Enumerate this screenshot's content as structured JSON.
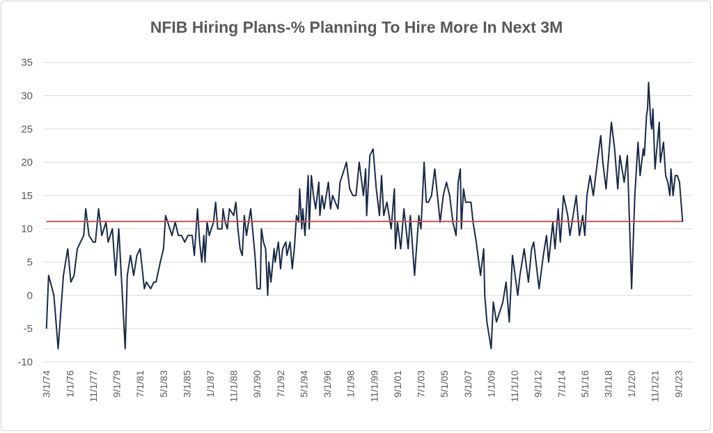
{
  "chart_data": {
    "type": "line",
    "title": "NFIB Hiring Plans-% Planning To Hire More In Next 3M",
    "xlabel": "",
    "ylabel": "",
    "ylim": [
      -10,
      35
    ],
    "yticks": [
      35,
      30,
      25,
      20,
      15,
      10,
      5,
      0,
      -5,
      -10
    ],
    "xtick_labels": [
      "3/1/74",
      "1/1/76",
      "11/1/77",
      "9/1/79",
      "7/1/81",
      "5/1/83",
      "3/1/85",
      "1/1/87",
      "11/1/88",
      "9/1/90",
      "7/1/92",
      "5/1/94",
      "3/1/96",
      "1/1/98",
      "11/1/99",
      "9/1/01",
      "7/1/03",
      "5/1/05",
      "3/1/07",
      "1/1/09",
      "11/1/10",
      "9/1/12",
      "7/1/14",
      "5/1/16",
      "3/1/18",
      "1/1/20",
      "11/1/21",
      "9/1/23"
    ],
    "grid": "horizontal",
    "legend": "none",
    "colors": {
      "series": "#17294a",
      "reference_line": "#c9544d",
      "grid": "#d9d9d9",
      "text": "#595959"
    },
    "reference_line": {
      "value": 11.1
    },
    "series": [
      {
        "points": [
          [
            "1974-03",
            -5
          ],
          [
            "1974-05",
            3
          ],
          [
            "1974-10",
            0
          ],
          [
            "1975-02",
            -8
          ],
          [
            "1975-07",
            3
          ],
          [
            "1975-11",
            7
          ],
          [
            "1976-02",
            2
          ],
          [
            "1976-05",
            3
          ],
          [
            "1976-08",
            7
          ],
          [
            "1977-02",
            9
          ],
          [
            "1977-04",
            13
          ],
          [
            "1977-07",
            9
          ],
          [
            "1977-11",
            8
          ],
          [
            "1978-01",
            8
          ],
          [
            "1978-04",
            13
          ],
          [
            "1978-07",
            9
          ],
          [
            "1978-11",
            11
          ],
          [
            "1979-01",
            8
          ],
          [
            "1979-05",
            10
          ],
          [
            "1979-08",
            3
          ],
          [
            "1979-11",
            10
          ],
          [
            "1980-05",
            -8
          ],
          [
            "1980-07",
            3
          ],
          [
            "1980-10",
            6
          ],
          [
            "1981-01",
            3
          ],
          [
            "1981-04",
            6
          ],
          [
            "1981-07",
            7
          ],
          [
            "1981-11",
            1
          ],
          [
            "1982-01",
            2
          ],
          [
            "1982-05",
            1
          ],
          [
            "1982-08",
            2
          ],
          [
            "1982-10",
            2
          ],
          [
            "1983-02",
            5
          ],
          [
            "1983-05",
            7
          ],
          [
            "1983-07",
            12
          ],
          [
            "1983-11",
            10
          ],
          [
            "1984-01",
            9
          ],
          [
            "1984-04",
            11
          ],
          [
            "1984-07",
            9
          ],
          [
            "1984-10",
            9
          ],
          [
            "1985-01",
            8
          ],
          [
            "1985-04",
            9
          ],
          [
            "1985-08",
            9
          ],
          [
            "1985-10",
            6
          ],
          [
            "1986-01",
            13
          ],
          [
            "1986-03",
            8
          ],
          [
            "1986-05",
            5
          ],
          [
            "1986-07",
            9
          ],
          [
            "1986-08",
            5
          ],
          [
            "1986-10",
            11
          ],
          [
            "1986-12",
            9
          ],
          [
            "1987-04",
            11
          ],
          [
            "1987-06",
            14
          ],
          [
            "1987-08",
            10
          ],
          [
            "1987-12",
            10
          ],
          [
            "1988-01",
            13
          ],
          [
            "1988-03",
            11
          ],
          [
            "1988-05",
            10
          ],
          [
            "1988-07",
            13
          ],
          [
            "1988-11",
            12
          ],
          [
            "1989-01",
            14
          ],
          [
            "1989-03",
            10
          ],
          [
            "1989-05",
            7
          ],
          [
            "1989-07",
            6
          ],
          [
            "1989-09",
            12
          ],
          [
            "1989-11",
            9
          ],
          [
            "1990-01",
            11
          ],
          [
            "1990-03",
            13
          ],
          [
            "1990-07",
            6
          ],
          [
            "1990-09",
            1
          ],
          [
            "1990-12",
            1
          ],
          [
            "1991-01",
            10
          ],
          [
            "1991-03",
            8
          ],
          [
            "1991-05",
            7
          ],
          [
            "1991-07",
            0
          ],
          [
            "1991-08",
            5
          ],
          [
            "1991-10",
            2
          ],
          [
            "1992-01",
            7
          ],
          [
            "1992-02",
            5
          ],
          [
            "1992-05",
            8
          ],
          [
            "1992-07",
            4
          ],
          [
            "1992-09",
            7
          ],
          [
            "1992-12",
            8
          ],
          [
            "1993-01",
            6
          ],
          [
            "1993-04",
            8
          ],
          [
            "1993-06",
            4
          ],
          [
            "1993-08",
            7
          ],
          [
            "1993-10",
            12
          ],
          [
            "1993-12",
            11
          ],
          [
            "1994-01",
            16
          ],
          [
            "1994-03",
            10
          ],
          [
            "1994-04",
            13
          ],
          [
            "1994-06",
            9
          ],
          [
            "1994-09",
            18
          ],
          [
            "1994-10",
            10
          ],
          [
            "1994-12",
            18
          ],
          [
            "1995-02",
            15
          ],
          [
            "1995-04",
            13
          ],
          [
            "1995-07",
            17
          ],
          [
            "1995-08",
            12
          ],
          [
            "1995-10",
            15
          ],
          [
            "1995-12",
            13
          ],
          [
            "1996-04",
            17
          ],
          [
            "1996-06",
            13
          ],
          [
            "1996-08",
            15
          ],
          [
            "1997-01",
            13
          ],
          [
            "1997-03",
            17
          ],
          [
            "1997-05",
            18
          ],
          [
            "1997-09",
            20
          ],
          [
            "1997-12",
            16
          ],
          [
            "1998-03",
            15
          ],
          [
            "1998-06",
            15
          ],
          [
            "1998-09",
            20
          ],
          [
            "1999-01",
            15
          ],
          [
            "1999-03",
            19
          ],
          [
            "1999-04",
            12
          ],
          [
            "1999-07",
            21
          ],
          [
            "1999-10",
            22
          ],
          [
            "2000-01",
            16
          ],
          [
            "2000-04",
            12
          ],
          [
            "2000-06",
            18
          ],
          [
            "2000-08",
            12
          ],
          [
            "2000-11",
            14
          ],
          [
            "2001-03",
            10
          ],
          [
            "2001-06",
            16
          ],
          [
            "2001-07",
            7
          ],
          [
            "2001-09",
            11
          ],
          [
            "2001-12",
            7
          ],
          [
            "2002-03",
            13
          ],
          [
            "2002-05",
            10
          ],
          [
            "2002-07",
            7
          ],
          [
            "2002-09",
            12
          ],
          [
            "2003-01",
            3
          ],
          [
            "2003-05",
            12
          ],
          [
            "2003-07",
            10
          ],
          [
            "2003-10",
            20
          ],
          [
            "2003-12",
            14
          ],
          [
            "2004-02",
            14
          ],
          [
            "2004-05",
            15
          ],
          [
            "2004-08",
            19
          ],
          [
            "2005-01",
            11
          ],
          [
            "2005-04",
            15
          ],
          [
            "2005-07",
            17
          ],
          [
            "2005-10",
            15
          ],
          [
            "2006-01",
            11
          ],
          [
            "2006-04",
            9
          ],
          [
            "2006-06",
            17
          ],
          [
            "2006-08",
            19
          ],
          [
            "2006-09",
            10
          ],
          [
            "2006-11",
            16
          ],
          [
            "2007-01",
            14
          ],
          [
            "2007-06",
            14
          ],
          [
            "2007-08",
            11
          ],
          [
            "2007-11",
            8
          ],
          [
            "2008-03",
            3
          ],
          [
            "2008-06",
            7
          ],
          [
            "2008-07",
            0
          ],
          [
            "2008-09",
            -4
          ],
          [
            "2009-01",
            -8
          ],
          [
            "2009-03",
            -1
          ],
          [
            "2009-06",
            -4
          ],
          [
            "2009-10",
            -2
          ],
          [
            "2009-12",
            -1
          ],
          [
            "2010-03",
            2
          ],
          [
            "2010-06",
            -4
          ],
          [
            "2010-09",
            6
          ],
          [
            "2011-02",
            0
          ],
          [
            "2011-04",
            3
          ],
          [
            "2011-08",
            7
          ],
          [
            "2011-12",
            2
          ],
          [
            "2012-03",
            7
          ],
          [
            "2012-05",
            8
          ],
          [
            "2012-10",
            1
          ],
          [
            "2013-02",
            6
          ],
          [
            "2013-05",
            9
          ],
          [
            "2013-07",
            5
          ],
          [
            "2013-11",
            11
          ],
          [
            "2014-01",
            7
          ],
          [
            "2014-04",
            13
          ],
          [
            "2014-06",
            8
          ],
          [
            "2014-09",
            15
          ],
          [
            "2015-01",
            12
          ],
          [
            "2015-03",
            9
          ],
          [
            "2015-06",
            12
          ],
          [
            "2015-09",
            15
          ],
          [
            "2015-12",
            9
          ],
          [
            "2016-03",
            12
          ],
          [
            "2016-05",
            9
          ],
          [
            "2016-07",
            15
          ],
          [
            "2016-10",
            18
          ],
          [
            "2017-01",
            15
          ],
          [
            "2017-04",
            19
          ],
          [
            "2017-08",
            24
          ],
          [
            "2017-10",
            20
          ],
          [
            "2018-01",
            16
          ],
          [
            "2018-06",
            26
          ],
          [
            "2018-09",
            22
          ],
          [
            "2018-12",
            16
          ],
          [
            "2019-02",
            21
          ],
          [
            "2019-06",
            17
          ],
          [
            "2019-09",
            21
          ],
          [
            "2020-01",
            1
          ],
          [
            "2020-04",
            15
          ],
          [
            "2020-07",
            23
          ],
          [
            "2020-09",
            18
          ],
          [
            "2020-12",
            22
          ],
          [
            "2021-01",
            21
          ],
          [
            "2021-03",
            27
          ],
          [
            "2021-04",
            28
          ],
          [
            "2021-05",
            32
          ],
          [
            "2021-07",
            26
          ],
          [
            "2021-08",
            25
          ],
          [
            "2021-09",
            28
          ],
          [
            "2021-11",
            19
          ],
          [
            "2022-03",
            26
          ],
          [
            "2022-04",
            20
          ],
          [
            "2022-07",
            23
          ],
          [
            "2022-09",
            18
          ],
          [
            "2022-11",
            17
          ],
          [
            "2023-01",
            15
          ],
          [
            "2023-02",
            19
          ],
          [
            "2023-04",
            15
          ],
          [
            "2023-06",
            18
          ],
          [
            "2023-08",
            18
          ],
          [
            "2023-10",
            17
          ],
          [
            "2024-01",
            11
          ]
        ]
      }
    ]
  }
}
